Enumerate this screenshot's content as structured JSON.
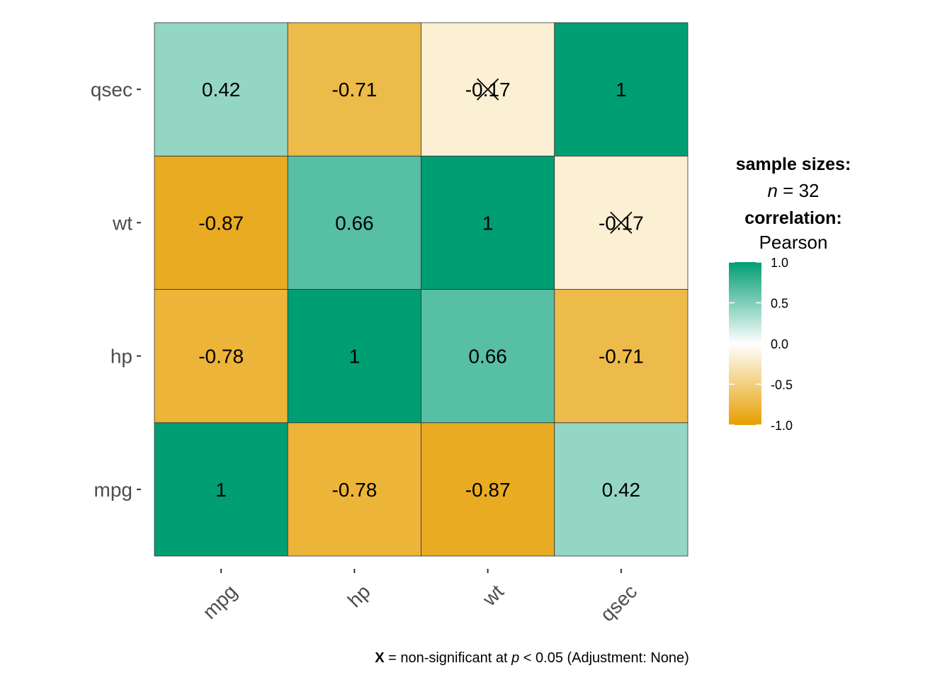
{
  "chart_data": {
    "type": "heatmap",
    "variables_x": [
      "mpg",
      "hp",
      "wt",
      "qsec"
    ],
    "variables_y": [
      "mpg",
      "hp",
      "wt",
      "qsec"
    ],
    "matrix": [
      [
        1,
        -0.78,
        -0.87,
        0.42
      ],
      [
        -0.78,
        1,
        0.66,
        -0.71
      ],
      [
        -0.87,
        0.66,
        1,
        -0.17
      ],
      [
        0.42,
        -0.71,
        -0.17,
        1
      ]
    ],
    "labels": [
      [
        "1",
        "-0.78",
        "-0.87",
        "0.42"
      ],
      [
        "-0.78",
        "1",
        "0.66",
        "-0.71"
      ],
      [
        "-0.87",
        "0.66",
        "1",
        "-0.17"
      ],
      [
        "0.42",
        "-0.71",
        "-0.17",
        "1"
      ]
    ],
    "non_significant": [
      [
        2,
        3
      ],
      [
        3,
        2
      ]
    ],
    "color_scale": {
      "low": "#E69F00",
      "mid": "#FFFFFF",
      "high": "#009E73",
      "limits": [
        -1,
        1
      ]
    },
    "legend": {
      "sample_sizes_title": "sample sizes:",
      "n_symbol": "n",
      "n_equals": " = 32",
      "correlation_title": "correlation:",
      "method": "Pearson",
      "ticks": [
        "1.0",
        "0.5",
        "0.0",
        "-0.5",
        "-1.0"
      ],
      "tick_values": [
        1,
        0.5,
        0,
        -0.5,
        -1
      ]
    },
    "caption": {
      "symbol": "X",
      "text_before_p": " = non-significant at ",
      "p_symbol": "p",
      "text_after_p": " < 0.05 (Adjustment: None)"
    },
    "grid": false
  }
}
